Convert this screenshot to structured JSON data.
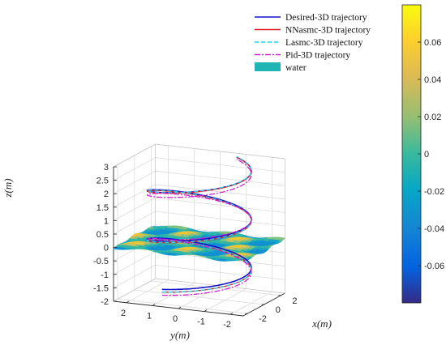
{
  "chart_data": {
    "type": "line",
    "title": "",
    "axes": {
      "z": {
        "label": "z(m)",
        "ticks": [
          "3",
          "2.5",
          "2",
          "1.5",
          "1",
          "0.5",
          "0",
          "-0.5",
          "-1",
          "-1.5",
          "-2"
        ],
        "range": [
          -2,
          3
        ]
      },
      "y": {
        "label": "y(m)",
        "ticks": [
          "2",
          "1",
          "0",
          "-1",
          "-2"
        ],
        "range": [
          -2.5,
          2.5
        ]
      },
      "x": {
        "label": "x(m)",
        "ticks": [
          "2",
          "0",
          "-2"
        ],
        "range": [
          -2.5,
          2.5
        ]
      }
    },
    "grid": true,
    "legend": {
      "position": "top-right",
      "entries": [
        {
          "label": "Desired-3D trajectory",
          "color": "#1414c8",
          "style": "solid"
        },
        {
          "label": "NNasmc-3D trajectory",
          "color": "#e01b24",
          "style": "solid"
        },
        {
          "label": "Lasmc-3D trajectory",
          "color": "#27d3e8",
          "style": "dashed"
        },
        {
          "label": "Pid-3D trajectory",
          "color": "#d020d0",
          "style": "dashdot"
        },
        {
          "label": "water",
          "color": "#1fb5b5",
          "style": "patch"
        }
      ]
    },
    "series": [
      {
        "name": "Desired-3D trajectory",
        "shape": "helix",
        "radius": 2,
        "z_start": -1.5,
        "z_end": 3,
        "turns": 2.5
      },
      {
        "name": "NNasmc-3D trajectory",
        "shape": "helix",
        "radius": 2,
        "z_start": -1.6,
        "z_end": 3,
        "turns": 2.5
      },
      {
        "name": "Lasmc-3D trajectory",
        "shape": "helix",
        "radius": 2,
        "z_start": -1.6,
        "z_end": 3,
        "turns": 2.5
      },
      {
        "name": "Pid-3D trajectory",
        "shape": "helix",
        "radius": 2,
        "z_start": -1.6,
        "z_end": 3,
        "turns": 2.5
      }
    ],
    "surface": {
      "name": "water",
      "type": "wave",
      "amplitude": 0.08,
      "z_mean": 0
    },
    "colorbar": {
      "ticks": [
        "0.06",
        "0.04",
        "0.02",
        "0",
        "-0.02",
        "-0.04",
        "-0.06"
      ],
      "range": [
        -0.08,
        0.08
      ],
      "colormap": "parula"
    }
  }
}
